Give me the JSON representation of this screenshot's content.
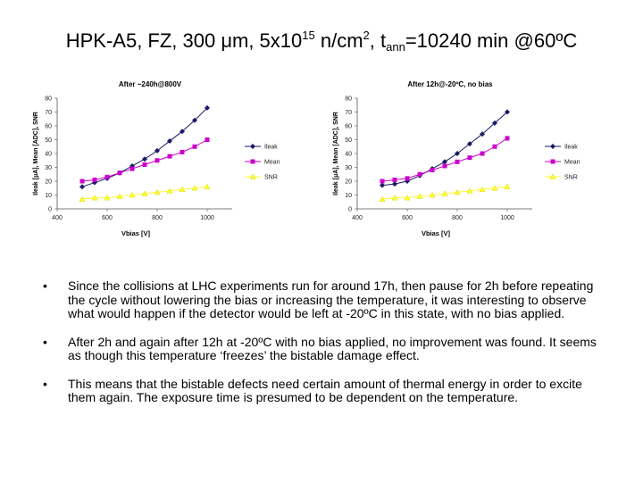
{
  "title": {
    "prefix": "HPK-A5, FZ, 300 μm, 5x10",
    "exp": "15",
    "mid1": " n/cm",
    "exp2": "2",
    "mid2": ", t",
    "sub": "ann",
    "suffix": "=10240 min @60ºC"
  },
  "bullets": [
    {
      "marker": "•",
      "text": "Since the collisions at LHC experiments run for around 17h, then pause for 2h before repeating the cycle without lowering the bias or increasing the temperature, it was interesting to observe what would happen if the detector would be left at -20ºC in this state, with no bias applied."
    },
    {
      "marker": "•",
      "text": "After 2h and again after 12h at -20ºC with no bias applied, no improvement was found. It seems as though this temperature ‘freezes’ the bistable damage effect."
    },
    {
      "marker": "•",
      "text": "This means that the bistable defects need certain amount of thermal energy in order to excite them again. The exposure time is presumed to be dependent on the temperature."
    }
  ],
  "chart_data": [
    {
      "type": "line",
      "title": "After ~240h@800V",
      "xlabel": "Vbias [V]",
      "ylabel": "Ileak [μA], Mean [ADC], SNR",
      "xlim": [
        400,
        1100
      ],
      "ylim": [
        0,
        80
      ],
      "xticks": [
        400,
        600,
        800,
        1000
      ],
      "yticks": [
        0,
        10,
        20,
        30,
        40,
        50,
        60,
        70,
        80
      ],
      "grid": false,
      "legend": "right",
      "x": [
        500,
        550,
        600,
        650,
        700,
        750,
        800,
        850,
        900,
        950,
        1000
      ],
      "series": [
        {
          "name": "Ileak",
          "color": "#1a1a66",
          "marker": "diamond",
          "values": [
            16,
            19,
            22,
            26,
            31,
            36,
            42,
            49,
            56,
            64,
            73
          ]
        },
        {
          "name": "Mean",
          "color": "#cc00cc",
          "marker": "square",
          "values": [
            20,
            21,
            23,
            26,
            29,
            32,
            35,
            38,
            41,
            45,
            50
          ]
        },
        {
          "name": "SNR",
          "color": "#ffff33",
          "marker": "triangle",
          "values": [
            7,
            8,
            8,
            9,
            10,
            11,
            12,
            13,
            14,
            15,
            16
          ]
        }
      ]
    },
    {
      "type": "line",
      "title": "After 12h@-20ºC, no bias",
      "xlabel": "Vbias [V]",
      "ylabel": "Ileak [μA], Mean [ADC], SNR",
      "xlim": [
        400,
        1100
      ],
      "ylim": [
        0,
        80
      ],
      "xticks": [
        400,
        600,
        800,
        1000
      ],
      "yticks": [
        0,
        10,
        20,
        30,
        40,
        50,
        60,
        70,
        80
      ],
      "grid": false,
      "legend": "right",
      "x": [
        500,
        550,
        600,
        650,
        700,
        750,
        800,
        850,
        900,
        950,
        1000
      ],
      "series": [
        {
          "name": "Ileak",
          "color": "#1a1a66",
          "marker": "diamond",
          "values": [
            17,
            18,
            20,
            24,
            29,
            34,
            40,
            47,
            54,
            62,
            70
          ]
        },
        {
          "name": "Mean",
          "color": "#cc00cc",
          "marker": "square",
          "values": [
            20,
            21,
            22,
            25,
            28,
            31,
            34,
            37,
            40,
            45,
            51
          ]
        },
        {
          "name": "SNR",
          "color": "#ffff33",
          "marker": "triangle",
          "values": [
            7,
            8,
            8,
            9,
            10,
            11,
            12,
            13,
            14,
            15,
            16
          ]
        }
      ]
    }
  ]
}
